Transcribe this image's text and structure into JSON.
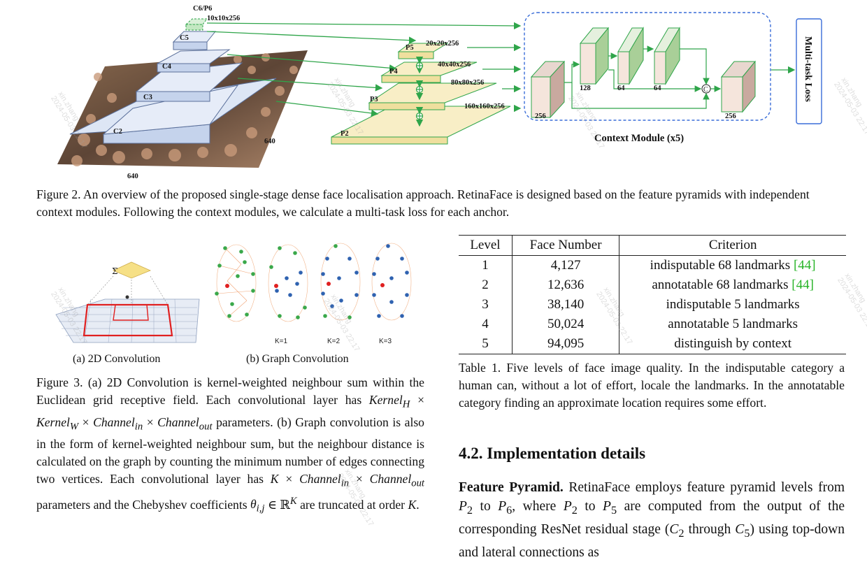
{
  "figure2": {
    "labels": {
      "c6p6": "C6/P6",
      "p6_dim": "10x10x256",
      "c5": "C5",
      "c4": "C4",
      "c3": "C3",
      "c2": "C2",
      "width": "640",
      "height": "640",
      "p5": "P5",
      "p4": "P4",
      "p3": "P3",
      "p2": "P2",
      "p5_dim": "20x20x256",
      "p4_dim": "40x40x256",
      "p3_dim": "80x80x256",
      "p2_dim": "160x160x256",
      "ctx_256a": "256",
      "ctx_128": "128",
      "ctx_64a": "64",
      "ctx_64b": "64",
      "ctx_256b": "256",
      "context_module": "Context Module (x5)",
      "loss": "Multi-task Loss"
    },
    "caption": "Figure 2. An overview of the proposed single-stage dense face localisation approach. RetinaFace is designed based on the feature pyramids with independent context modules. Following the context modules, we calculate a multi-task loss for each anchor."
  },
  "figure3": {
    "sigma": "Σ",
    "k_labels": [
      "K=1",
      "K=2",
      "K=3"
    ],
    "subcap_a": "(a) 2D Convolution",
    "subcap_b": "(b) Graph Convolution",
    "caption_html": "Figure 3. (a) 2D Convolution is kernel-weighted neighbour sum within the Euclidean grid receptive field. Each convolutional layer has <i>Kernel<sub>H</sub></i> × <i>Kernel<sub>W</sub></i> × <i>Channel<sub>in</sub></i> × <i>Channel<sub>out</sub></i> parameters. (b) Graph convolution is also in the form of kernel-weighted neighbour sum, but the neighbour distance is calculated on the graph by counting the minimum number of edges connecting two vertices. Each convolutional layer has <i>K</i> × <i>Channel<sub>in</sub></i> × <i>Channel<sub>out</sub></i> parameters and the Chebyshev coefficients <i>θ<sub>i,j</sub></i> ∈ ℝ<sup><i>K</i></sup> are truncated at order <i>K</i>."
  },
  "table1": {
    "headers": [
      "Level",
      "Face Number",
      "Criterion"
    ],
    "rows": [
      {
        "level": "1",
        "number": "4,127",
        "criterion": "indisputable 68 landmarks ",
        "cite": "[44]"
      },
      {
        "level": "2",
        "number": "12,636",
        "criterion": "annotatable 68 landmarks ",
        "cite": "[44]"
      },
      {
        "level": "3",
        "number": "38,140",
        "criterion": "indisputable 5 landmarks",
        "cite": ""
      },
      {
        "level": "4",
        "number": "50,024",
        "criterion": "annotatable 5 landmarks",
        "cite": ""
      },
      {
        "level": "5",
        "number": "94,095",
        "criterion": "distinguish by context",
        "cite": ""
      }
    ],
    "caption": "Table 1. Five levels of face image quality. In the indisputable category a human can, without a lot of effort, locale the landmarks. In the annotatable category finding an approximate location requires some effort."
  },
  "section": {
    "heading": "4.2. Implementation details",
    "para_lead": "Feature Pyramid.",
    "para_html": " RetinaFace employs feature pyramid levels from <i>P</i><sub>2</sub> to <i>P</i><sub>6</sub>, where <i>P</i><sub>2</sub> to <i>P</i><sub>5</sub> are computed from the output of the corresponding ResNet residual stage (<i>C</i><sub>2</sub> through <i>C</i><sub>5</sub>) using top-down and lateral connections as"
  },
  "watermark": "xin.zhang\n2024-05-03 22:17"
}
